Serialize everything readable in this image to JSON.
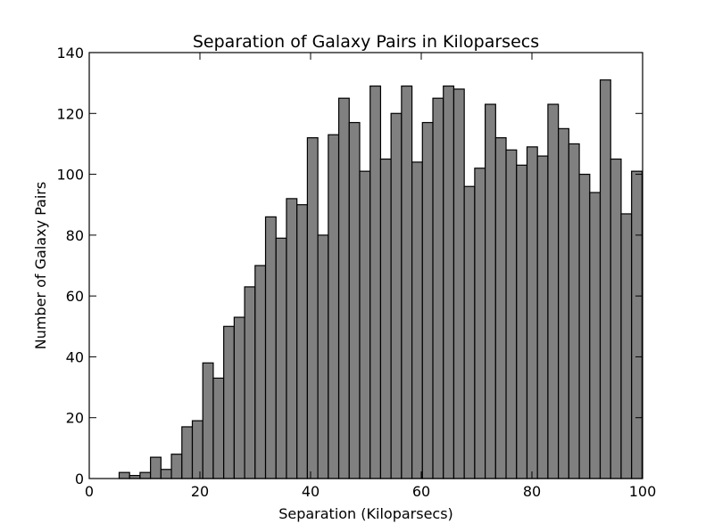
{
  "chart_data": {
    "type": "bar",
    "title": "Separation of Galaxy Pairs in Kiloparsecs",
    "xlabel": "Separation (Kiloparsecs)",
    "ylabel": "Number of Galaxy Pairs",
    "xlim": [
      0,
      100
    ],
    "ylim": [
      0,
      140
    ],
    "xticks": [
      0,
      20,
      40,
      60,
      80,
      100
    ],
    "yticks": [
      0,
      20,
      40,
      60,
      80,
      100,
      120,
      140
    ],
    "bin_start": 5.4,
    "bin_width": 1.89,
    "values": [
      2,
      1,
      2,
      7,
      3,
      8,
      17,
      19,
      38,
      33,
      50,
      53,
      63,
      70,
      86,
      79,
      92,
      90,
      112,
      80,
      113,
      125,
      117,
      101,
      129,
      105,
      120,
      129,
      104,
      117,
      125,
      129,
      128,
      96,
      102,
      123,
      112,
      108,
      103,
      109,
      106,
      123,
      115,
      110,
      100,
      94,
      131,
      105,
      87,
      101
    ],
    "bar_color": "#808080",
    "edge_color": "#000000",
    "grid": false,
    "legend": "none"
  }
}
